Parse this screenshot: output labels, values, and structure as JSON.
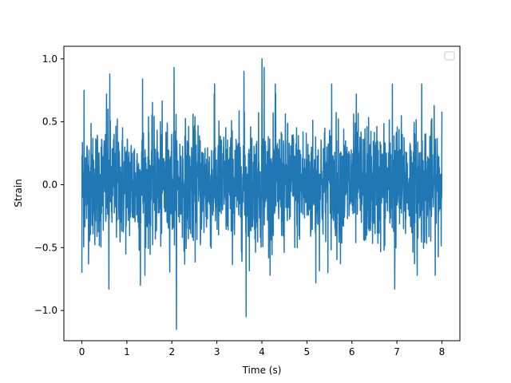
{
  "chart_data": {
    "type": "line",
    "title": "",
    "xlabel": "Time (s)",
    "ylabel": "Strain",
    "xlim": [
      -0.4,
      8.4
    ],
    "ylim": [
      -1.24,
      1.1
    ],
    "x_ticks": [
      0,
      1,
      2,
      3,
      4,
      5,
      6,
      7,
      8
    ],
    "x_tick_labels": [
      "0",
      "1",
      "2",
      "3",
      "4",
      "5",
      "6",
      "7",
      "8"
    ],
    "y_ticks": [
      -1.0,
      -0.5,
      0.0,
      0.5,
      1.0
    ],
    "y_tick_labels": [
      "−1.0",
      "−0.5",
      "0.0",
      "0.5",
      "1.0"
    ],
    "grid": false,
    "legend": {
      "placement": "top-right",
      "entries": []
    },
    "series": [
      {
        "color": "#1f77b4",
        "x_range": [
          0,
          8
        ],
        "sample_count": 2000,
        "description_values": {
          "max": 1.0,
          "min": -1.15,
          "typical_range": [
            -0.5,
            0.5
          ]
        },
        "peaks": [
          {
            "x": 0.05,
            "y": 0.75
          },
          {
            "x": 0.0,
            "y": -0.7
          },
          {
            "x": 0.55,
            "y": 0.72
          },
          {
            "x": 0.6,
            "y": -0.83
          },
          {
            "x": 0.62,
            "y": 0.88
          },
          {
            "x": 1.35,
            "y": 0.84
          },
          {
            "x": 1.3,
            "y": -0.8
          },
          {
            "x": 2.05,
            "y": 0.93
          },
          {
            "x": 2.1,
            "y": -1.15
          },
          {
            "x": 2.95,
            "y": 0.8
          },
          {
            "x": 3.6,
            "y": 0.9
          },
          {
            "x": 3.65,
            "y": -1.05
          },
          {
            "x": 4.0,
            "y": 1.0
          },
          {
            "x": 4.05,
            "y": 0.93
          },
          {
            "x": 4.3,
            "y": 0.8
          },
          {
            "x": 5.55,
            "y": 0.8
          },
          {
            "x": 5.2,
            "y": -0.78
          },
          {
            "x": 6.1,
            "y": 0.72
          },
          {
            "x": 6.9,
            "y": 0.8
          },
          {
            "x": 6.95,
            "y": -0.83
          },
          {
            "x": 7.55,
            "y": 0.8
          },
          {
            "x": 7.45,
            "y": -0.72
          },
          {
            "x": 8.0,
            "y": 0.58
          }
        ]
      }
    ]
  }
}
